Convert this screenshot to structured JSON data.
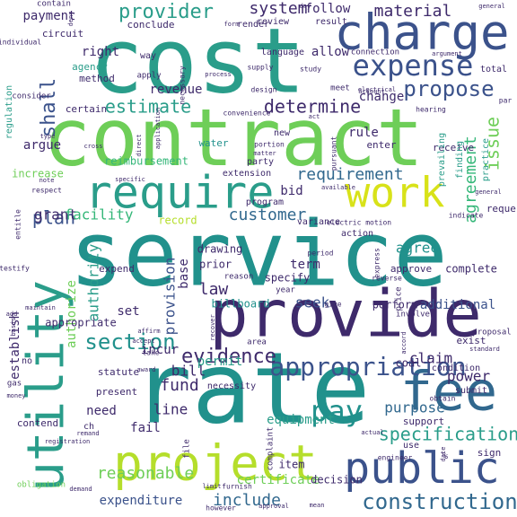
{
  "palette": {
    "navy": "#3e2a6b",
    "purple": "#472c7a",
    "indigo": "#3b528b",
    "blue": "#31688e",
    "teal": "#21918c",
    "sea": "#2a9d8a",
    "green": "#35b779",
    "lime": "#6ece58",
    "yellowgreen": "#b5de2b",
    "yellow": "#d8e219"
  },
  "words": [
    {
      "text": "service",
      "color": "teal"
    },
    {
      "text": "cost",
      "color": "sea"
    },
    {
      "text": "contract",
      "color": "lime"
    },
    {
      "text": "rate",
      "color": "teal"
    },
    {
      "text": "provide",
      "color": "navy"
    },
    {
      "text": "charge",
      "color": "indigo"
    },
    {
      "text": "require",
      "color": "sea"
    },
    {
      "text": "project",
      "color": "yellowgreen"
    },
    {
      "text": "public",
      "color": "indigo"
    },
    {
      "text": "fee",
      "color": "blue"
    },
    {
      "text": "utility",
      "color": "sea"
    },
    {
      "text": "work",
      "color": "yellow"
    },
    {
      "text": "expense",
      "color": "indigo"
    },
    {
      "text": "appropriation",
      "color": "indigo"
    },
    {
      "text": "construction",
      "color": "blue"
    },
    {
      "text": "propose",
      "color": "indigo"
    },
    {
      "text": "section",
      "color": "teal"
    },
    {
      "text": "evidence",
      "color": "navy"
    },
    {
      "text": "specification",
      "color": "sea"
    },
    {
      "text": "pay",
      "color": "teal"
    },
    {
      "text": "provider",
      "color": "sea"
    },
    {
      "text": "issue",
      "color": "lime"
    },
    {
      "text": "shall",
      "color": "indigo"
    },
    {
      "text": "estimate",
      "color": "sea"
    },
    {
      "text": "determine",
      "color": "navy"
    },
    {
      "text": "plan",
      "color": "indigo"
    },
    {
      "text": "requirement",
      "color": "blue"
    },
    {
      "text": "agreement",
      "color": "green"
    },
    {
      "text": "grant",
      "color": "navy"
    },
    {
      "text": "facility",
      "color": "green"
    },
    {
      "text": "customer",
      "color": "blue"
    },
    {
      "text": "fund",
      "color": "navy"
    },
    {
      "text": "authority",
      "color": "sea"
    },
    {
      "text": "provision",
      "color": "indigo"
    },
    {
      "text": "include",
      "color": "blue"
    },
    {
      "text": "reasonable",
      "color": "lime"
    },
    {
      "text": "material",
      "color": "navy"
    },
    {
      "text": "system",
      "color": "navy"
    },
    {
      "text": "bill",
      "color": "navy"
    },
    {
      "text": "law",
      "color": "navy"
    },
    {
      "text": "line",
      "color": "navy"
    },
    {
      "text": "power",
      "color": "navy"
    },
    {
      "text": "purpose",
      "color": "blue"
    },
    {
      "text": "claim",
      "color": "navy"
    },
    {
      "text": "agree",
      "color": "teal"
    },
    {
      "text": "seek",
      "color": "indigo"
    },
    {
      "text": "term",
      "color": "navy"
    },
    {
      "text": "additional",
      "color": "indigo"
    },
    {
      "text": "permit",
      "color": "sea"
    },
    {
      "text": "payment",
      "color": "navy"
    },
    {
      "text": "right",
      "color": "navy"
    },
    {
      "text": "allow",
      "color": "navy"
    },
    {
      "text": "follow",
      "color": "navy"
    },
    {
      "text": "revenue",
      "color": "navy"
    },
    {
      "text": "base",
      "color": "navy"
    },
    {
      "text": "incur",
      "color": "navy"
    },
    {
      "text": "bid",
      "color": "navy"
    },
    {
      "text": "rule",
      "color": "navy"
    },
    {
      "text": "change",
      "color": "navy"
    },
    {
      "text": "set",
      "color": "navy"
    },
    {
      "text": "argue",
      "color": "navy"
    },
    {
      "text": "need",
      "color": "navy"
    },
    {
      "text": "fail",
      "color": "navy"
    },
    {
      "text": "equipment",
      "color": "sea"
    },
    {
      "text": "expenditure",
      "color": "indigo"
    },
    {
      "text": "reimbursement",
      "color": "green"
    },
    {
      "text": "increase",
      "color": "lime"
    },
    {
      "text": "certificate",
      "color": "lime"
    },
    {
      "text": "decision",
      "color": "navy"
    },
    {
      "text": "item",
      "color": "navy"
    },
    {
      "text": "establish",
      "color": "navy"
    },
    {
      "text": "authorize",
      "color": "lime"
    },
    {
      "text": "appropriate",
      "color": "navy"
    },
    {
      "text": "billboard",
      "color": "teal"
    },
    {
      "text": "perform",
      "color": "navy"
    },
    {
      "text": "coal",
      "color": "navy"
    },
    {
      "text": "receive",
      "color": "navy"
    },
    {
      "text": "approve",
      "color": "navy"
    },
    {
      "text": "complete",
      "color": "navy"
    },
    {
      "text": "expend",
      "color": "navy"
    },
    {
      "text": "prior",
      "color": "navy"
    },
    {
      "text": "specify",
      "color": "navy"
    },
    {
      "text": "drawing",
      "color": "navy"
    },
    {
      "text": "record",
      "color": "yellowgreen"
    },
    {
      "text": "program",
      "color": "navy"
    },
    {
      "text": "party",
      "color": "navy"
    },
    {
      "text": "extension",
      "color": "navy"
    },
    {
      "text": "water",
      "color": "teal"
    },
    {
      "text": "enter",
      "color": "navy"
    },
    {
      "text": "method",
      "color": "navy"
    },
    {
      "text": "agency",
      "color": "sea"
    },
    {
      "text": "circuit",
      "color": "navy"
    },
    {
      "text": "conclude",
      "color": "navy"
    },
    {
      "text": "certain",
      "color": "navy"
    },
    {
      "text": "request",
      "color": "navy"
    },
    {
      "text": "action",
      "color": "navy"
    },
    {
      "text": "variance",
      "color": "navy"
    },
    {
      "text": "present",
      "color": "navy"
    },
    {
      "text": "statute",
      "color": "navy"
    },
    {
      "text": "support",
      "color": "navy"
    },
    {
      "text": "condition",
      "color": "navy"
    },
    {
      "text": "submit",
      "color": "navy"
    },
    {
      "text": "exist",
      "color": "navy"
    },
    {
      "text": "contend",
      "color": "navy"
    },
    {
      "text": "regulation",
      "color": "sea"
    },
    {
      "text": "language",
      "color": "navy"
    },
    {
      "text": "connection",
      "color": "navy"
    },
    {
      "text": "sign",
      "color": "navy"
    },
    {
      "text": "use",
      "color": "navy"
    },
    {
      "text": "prevailing",
      "color": "sea"
    },
    {
      "text": "practice",
      "color": "sea"
    },
    {
      "text": "finding",
      "color": "sea"
    },
    {
      "text": "necessity",
      "color": "navy"
    },
    {
      "text": "review",
      "color": "navy"
    },
    {
      "text": "render",
      "color": "navy"
    },
    {
      "text": "result",
      "color": "navy"
    },
    {
      "text": "new",
      "color": "navy"
    },
    {
      "text": "entitle",
      "color": "navy"
    },
    {
      "text": "consider",
      "color": "navy"
    },
    {
      "text": "apply",
      "color": "navy"
    },
    {
      "text": "way",
      "color": "navy"
    },
    {
      "text": "contain",
      "color": "navy"
    },
    {
      "text": "individual",
      "color": "navy"
    },
    {
      "text": "complaint",
      "color": "navy"
    },
    {
      "text": "file",
      "color": "navy"
    },
    {
      "text": "engineer",
      "color": "navy"
    },
    {
      "text": "obligation",
      "color": "lime"
    },
    {
      "text": "proposal",
      "color": "navy"
    },
    {
      "text": "involve",
      "color": "navy"
    },
    {
      "text": "price",
      "color": "navy"
    },
    {
      "text": "year",
      "color": "navy"
    },
    {
      "text": "gas",
      "color": "navy"
    },
    {
      "text": "give",
      "color": "navy"
    },
    {
      "text": "total",
      "color": "navy"
    },
    {
      "text": "study",
      "color": "navy"
    },
    {
      "text": "meet",
      "color": "navy"
    },
    {
      "text": "design",
      "color": "navy"
    },
    {
      "text": "account",
      "color": "navy"
    },
    {
      "text": "electric motion",
      "color": "navy"
    },
    {
      "text": "indicate",
      "color": "navy"
    },
    {
      "text": "area",
      "color": "navy"
    },
    {
      "text": "award",
      "color": "navy"
    },
    {
      "text": "take",
      "color": "navy"
    },
    {
      "text": "accept",
      "color": "navy"
    },
    {
      "text": "maintain",
      "color": "navy"
    },
    {
      "text": "however",
      "color": "navy"
    },
    {
      "text": "approval",
      "color": "navy"
    },
    {
      "text": "mean",
      "color": "navy"
    },
    {
      "text": "furnish",
      "color": "navy"
    },
    {
      "text": "limit",
      "color": "navy"
    },
    {
      "text": "date",
      "color": "navy"
    },
    {
      "text": "obtain",
      "color": "navy"
    },
    {
      "text": "standard",
      "color": "navy"
    },
    {
      "text": "registration",
      "color": "navy"
    },
    {
      "text": "remand",
      "color": "navy"
    },
    {
      "text": "direct",
      "color": "navy"
    },
    {
      "text": "cross",
      "color": "navy"
    },
    {
      "text": "type",
      "color": "navy"
    },
    {
      "text": "note",
      "color": "navy"
    },
    {
      "text": "respect",
      "color": "navy"
    },
    {
      "text": "supply",
      "color": "navy"
    },
    {
      "text": "form",
      "color": "navy"
    },
    {
      "text": "deny",
      "color": "navy"
    },
    {
      "text": "general",
      "color": "navy"
    },
    {
      "text": "argument",
      "color": "navy"
    },
    {
      "text": "hearing",
      "color": "navy"
    },
    {
      "text": "par",
      "color": "navy"
    },
    {
      "text": "convenience",
      "color": "navy"
    },
    {
      "text": "act",
      "color": "navy"
    },
    {
      "text": "portion",
      "color": "navy"
    },
    {
      "text": "matter",
      "color": "navy"
    },
    {
      "text": "pursuant",
      "color": "navy"
    },
    {
      "text": "period",
      "color": "navy"
    },
    {
      "text": "reason",
      "color": "navy"
    },
    {
      "text": "reverse",
      "color": "navy"
    },
    {
      "text": "express",
      "color": "navy"
    },
    {
      "text": "necessary",
      "color": "navy"
    },
    {
      "text": "application",
      "color": "navy"
    },
    {
      "text": "process",
      "color": "navy"
    },
    {
      "text": "testify",
      "color": "navy"
    },
    {
      "text": "basis",
      "color": "navy"
    },
    {
      "text": "accord",
      "color": "navy"
    },
    {
      "text": "recover",
      "color": "navy"
    },
    {
      "text": "affirm",
      "color": "navy"
    },
    {
      "text": "add",
      "color": "navy"
    },
    {
      "text": "money",
      "color": "navy"
    },
    {
      "text": "actual",
      "color": "navy"
    },
    {
      "text": "specific",
      "color": "navy"
    },
    {
      "text": "available",
      "color": "navy"
    },
    {
      "text": "electrical",
      "color": "navy"
    },
    {
      "text": "general",
      "color": "navy"
    },
    {
      "text": "day",
      "color": "navy"
    },
    {
      "text": "ch",
      "color": "navy"
    },
    {
      "text": "%",
      "color": "navy"
    },
    {
      "text": "no",
      "color": "navy"
    },
    {
      "text": "demand",
      "color": "navy"
    }
  ]
}
